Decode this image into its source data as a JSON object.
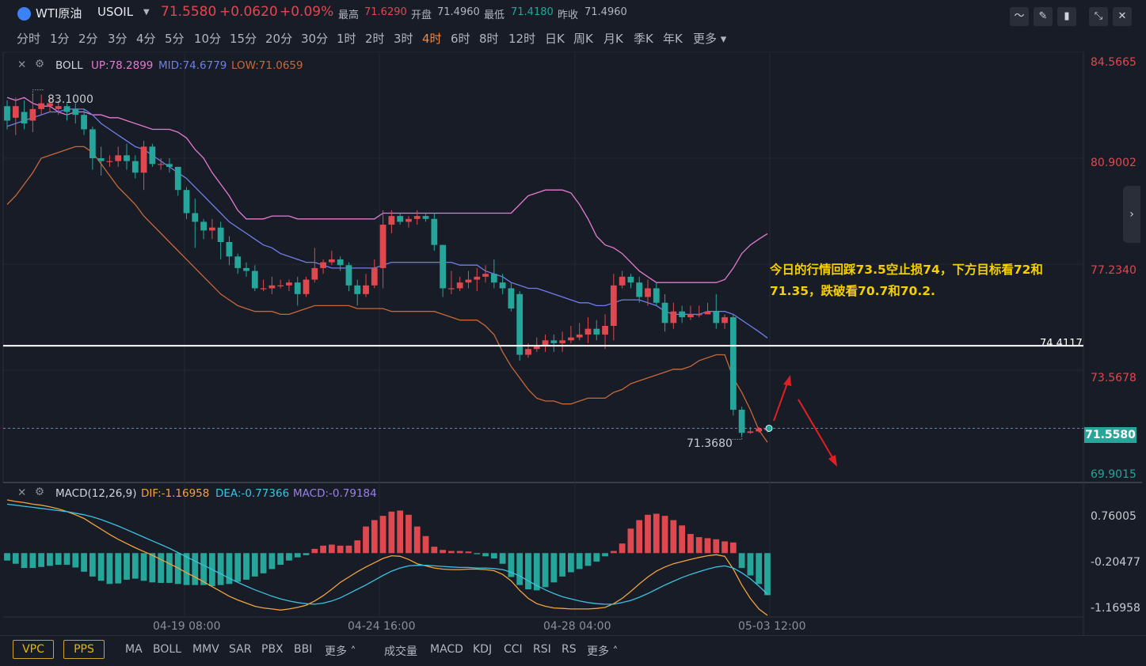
{
  "header": {
    "symbol": "WTI原油",
    "code": "USOIL",
    "price": "71.5580",
    "change": "+0.0620",
    "change_pct": "+0.09%",
    "high_label": "最高",
    "high": "71.6290",
    "open_label": "开盘",
    "open": "71.4960",
    "low_label": "最低",
    "low": "71.4180",
    "prev_label": "昨收",
    "prev": "71.4960"
  },
  "timeframes": [
    "分时",
    "1分",
    "2分",
    "3分",
    "4分",
    "5分",
    "10分",
    "15分",
    "20分",
    "30分",
    "1时",
    "2时",
    "3时",
    "4时",
    "6时",
    "8时",
    "12时",
    "日K",
    "周K",
    "月K",
    "季K",
    "年K",
    "更多"
  ],
  "active_timeframe": "4时",
  "boll": {
    "name": "BOLL",
    "up": "UP:78.2899",
    "mid": "MID:74.6779",
    "low": "LOW:71.0659"
  },
  "macd": {
    "name": "MACD(12,26,9)",
    "dif": "DIF:-1.16958",
    "dea": "DEA:-0.77366",
    "macd": "MACD:-0.79184"
  },
  "price_axis": [
    "84.5665",
    "80.9002",
    "77.2340",
    "73.5678",
    "69.9015"
  ],
  "macd_axis": [
    "0.76005",
    "-0.20477",
    "-1.16958"
  ],
  "dates": [
    "04-19 08:00",
    "04-24 16:00",
    "04-28 04:00",
    "05-03 12:00"
  ],
  "markers": {
    "high": "83.1000",
    "low": "71.3680",
    "hline": "74.4117",
    "current": "71.5580"
  },
  "annotation": {
    "line1": "今日的行情回踩73.5空止损74，下方目标看72和",
    "line2": "71.35，跌破看70.7和70.2."
  },
  "bottom": {
    "pills": [
      "VPC",
      "PPS"
    ],
    "main_indicators": [
      "MA",
      "BOLL",
      "MMV",
      "SAR",
      "PBX",
      "BBI",
      "更多"
    ],
    "sub_indicators": [
      "成交量",
      "MACD",
      "KDJ",
      "CCI",
      "RSI",
      "RS",
      "更多"
    ]
  },
  "colors": {
    "up": "#e0484f",
    "down": "#26a69a",
    "boll_up": "#e37bd0",
    "boll_mid": "#6e7fe8",
    "boll_low": "#c8683a",
    "dif": "#f3a33d",
    "dea": "#3cc1e0",
    "accent": "#f0883e"
  },
  "chart_data": {
    "type": "candlestick",
    "y_range": [
      69.9015,
      84.5665
    ],
    "candles": [
      [
        82.7,
        82.2,
        82.9,
        81.9
      ],
      [
        82.3,
        82.7,
        83.0,
        81.7
      ],
      [
        82.5,
        82.1,
        82.9,
        81.9
      ],
      [
        82.2,
        82.6,
        83.1,
        81.8
      ],
      [
        82.6,
        82.8,
        83.1,
        82.4
      ],
      [
        82.7,
        82.8,
        83.0,
        82.5
      ],
      [
        82.6,
        82.7,
        82.9,
        82.4
      ],
      [
        82.7,
        82.5,
        82.8,
        82.2
      ],
      [
        82.6,
        82.4,
        82.8,
        82.1
      ],
      [
        82.4,
        81.9,
        82.6,
        81.7
      ],
      [
        81.9,
        80.9,
        82.0,
        80.5
      ],
      [
        80.9,
        80.8,
        81.3,
        80.3
      ],
      [
        80.8,
        80.8,
        81.0,
        80.6
      ],
      [
        80.8,
        81.0,
        81.3,
        80.6
      ],
      [
        81.0,
        80.8,
        81.4,
        80.5
      ],
      [
        80.8,
        80.4,
        81.0,
        80.2
      ],
      [
        80.4,
        81.3,
        81.5,
        79.8
      ],
      [
        81.3,
        80.7,
        81.4,
        80.6
      ],
      [
        80.7,
        80.7,
        80.9,
        80.5
      ],
      [
        80.7,
        80.6,
        80.9,
        80.4
      ],
      [
        80.6,
        79.8,
        80.6,
        79.6
      ],
      [
        79.8,
        79.0,
        79.9,
        78.8
      ],
      [
        79.0,
        78.7,
        79.5,
        77.8
      ],
      [
        78.7,
        78.4,
        78.8,
        78.1
      ],
      [
        78.4,
        78.5,
        78.8,
        78.1
      ],
      [
        78.5,
        78.0,
        78.7,
        77.4
      ],
      [
        78.0,
        77.5,
        78.2,
        77.2
      ],
      [
        77.5,
        77.1,
        77.6,
        76.9
      ],
      [
        77.1,
        77.0,
        77.3,
        76.8
      ],
      [
        77.0,
        76.4,
        77.2,
        76.3
      ],
      [
        76.4,
        76.4,
        76.7,
        76.3
      ],
      [
        76.4,
        76.5,
        76.8,
        76.2
      ],
      [
        76.5,
        76.5,
        76.7,
        76.4
      ],
      [
        76.5,
        76.6,
        76.7,
        76.3
      ],
      [
        76.6,
        76.2,
        76.8,
        75.8
      ],
      [
        76.2,
        76.7,
        76.8,
        76.1
      ],
      [
        76.7,
        77.1,
        77.8,
        76.6
      ],
      [
        77.1,
        77.3,
        77.4,
        76.9
      ],
      [
        77.3,
        77.4,
        77.7,
        77.2
      ],
      [
        77.4,
        77.2,
        77.5,
        77.0
      ],
      [
        77.2,
        76.5,
        77.3,
        76.3
      ],
      [
        76.5,
        76.2,
        76.7,
        75.8
      ],
      [
        76.2,
        76.5,
        76.9,
        76.1
      ],
      [
        76.5,
        77.1,
        77.4,
        76.4
      ],
      [
        77.1,
        78.6,
        79.1,
        76.4
      ],
      [
        78.6,
        78.9,
        79.1,
        78.3
      ],
      [
        78.9,
        78.7,
        79.0,
        78.6
      ],
      [
        78.7,
        78.8,
        78.9,
        78.5
      ],
      [
        78.8,
        78.9,
        79.1,
        78.6
      ],
      [
        78.9,
        78.8,
        79.0,
        78.7
      ],
      [
        78.8,
        77.9,
        79.0,
        77.7
      ],
      [
        77.9,
        76.4,
        77.9,
        76.1
      ],
      [
        76.4,
        76.4,
        77.0,
        76.2
      ],
      [
        76.4,
        76.6,
        76.8,
        76.3
      ],
      [
        76.6,
        76.7,
        77.0,
        76.4
      ],
      [
        76.7,
        76.8,
        77.1,
        76.3
      ],
      [
        76.8,
        76.9,
        77.2,
        76.6
      ],
      [
        76.9,
        76.6,
        77.4,
        76.4
      ],
      [
        76.6,
        76.4,
        76.9,
        76.2
      ],
      [
        76.4,
        75.7,
        76.6,
        75.6
      ],
      [
        76.2,
        74.1,
        76.3,
        73.9
      ],
      [
        74.1,
        74.3,
        74.5,
        74.0
      ],
      [
        74.3,
        74.4,
        74.7,
        74.2
      ],
      [
        74.4,
        74.6,
        74.8,
        74.2
      ],
      [
        74.6,
        74.5,
        74.8,
        74.2
      ],
      [
        74.5,
        74.6,
        74.9,
        74.2
      ],
      [
        74.6,
        74.7,
        75.1,
        74.5
      ],
      [
        74.7,
        74.8,
        75.2,
        74.6
      ],
      [
        74.8,
        75.0,
        75.4,
        74.5
      ],
      [
        75.0,
        74.8,
        75.3,
        74.6
      ],
      [
        74.8,
        75.1,
        75.5,
        74.3
      ],
      [
        75.1,
        76.5,
        76.9,
        74.6
      ],
      [
        76.5,
        76.8,
        77.0,
        76.4
      ],
      [
        76.8,
        76.6,
        76.9,
        76.4
      ],
      [
        76.6,
        76.1,
        76.8,
        75.9
      ],
      [
        76.1,
        76.4,
        76.7,
        75.8
      ],
      [
        76.4,
        75.9,
        76.6,
        75.8
      ],
      [
        75.9,
        75.2,
        76.2,
        74.9
      ],
      [
        75.2,
        75.6,
        75.9,
        75.0
      ],
      [
        75.6,
        75.4,
        75.8,
        75.2
      ],
      [
        75.4,
        75.5,
        75.8,
        75.3
      ],
      [
        75.5,
        75.5,
        75.8,
        75.4
      ],
      [
        75.5,
        75.6,
        75.9,
        75.5
      ],
      [
        75.6,
        75.2,
        76.2,
        75.0
      ],
      [
        75.2,
        75.4,
        75.5,
        75.0
      ],
      [
        75.4,
        72.2,
        75.5,
        72.0
      ],
      [
        72.2,
        71.4,
        72.3,
        71.3
      ],
      [
        71.4,
        71.45,
        71.6,
        71.368
      ],
      [
        71.45,
        71.55,
        71.6,
        71.4
      ],
      [
        71.496,
        71.558,
        71.629,
        71.418
      ]
    ],
    "boll_up": [
      83.0,
      82.9,
      83.0,
      82.8,
      82.7,
      82.7,
      82.5,
      82.4,
      82.5,
      82.5,
      82.4,
      82.4,
      82.3,
      82.3,
      82.2,
      82.1,
      82.0,
      81.9,
      81.9,
      81.9,
      81.8,
      81.6,
      81.2,
      80.9,
      80.4,
      80.0,
      79.6,
      79.1,
      78.8,
      78.8,
      78.8,
      78.9,
      78.9,
      78.9,
      78.8,
      78.8,
      78.8,
      78.8,
      78.8,
      78.8,
      78.8,
      78.8,
      78.8,
      78.8,
      79.0,
      79.0,
      79.0,
      79.0,
      79.0,
      79.0,
      79.0,
      79.0,
      79.0,
      79.0,
      79.0,
      79.0,
      79.0,
      79.0,
      79.0,
      79.0,
      79.3,
      79.6,
      79.7,
      79.8,
      79.8,
      79.8,
      79.7,
      79.3,
      78.8,
      78.2,
      77.9,
      77.8,
      77.6,
      77.3,
      77.0,
      76.8,
      76.6,
      76.6,
      76.6,
      76.6,
      76.6,
      76.6,
      76.6,
      76.6,
      76.7,
      77.1,
      77.6,
      77.9,
      78.1,
      78.29
    ],
    "boll_mid": [
      82.0,
      82.1,
      82.2,
      82.3,
      82.4,
      82.5,
      82.5,
      82.6,
      82.6,
      82.6,
      82.4,
      82.1,
      81.9,
      81.7,
      81.5,
      81.3,
      81.2,
      81.0,
      80.8,
      80.6,
      80.4,
      80.2,
      79.9,
      79.6,
      79.3,
      79.0,
      78.7,
      78.5,
      78.3,
      78.1,
      77.9,
      77.8,
      77.6,
      77.5,
      77.4,
      77.3,
      77.3,
      77.2,
      77.1,
      77.1,
      77.1,
      77.1,
      77.1,
      77.1,
      77.2,
      77.3,
      77.3,
      77.3,
      77.3,
      77.3,
      77.3,
      77.3,
      77.3,
      77.2,
      77.2,
      77.2,
      77.0,
      76.9,
      76.8,
      76.6,
      76.5,
      76.4,
      76.4,
      76.3,
      76.2,
      76.1,
      76.0,
      75.9,
      75.9,
      75.8,
      75.8,
      75.9,
      76.0,
      76.0,
      76.0,
      75.9,
      75.8,
      75.6,
      75.5,
      75.5,
      75.5,
      75.5,
      75.6,
      75.6,
      75.6,
      75.5,
      75.3,
      75.1,
      74.9,
      74.68
    ],
    "boll_low": [
      79.3,
      79.6,
      80.0,
      80.4,
      80.9,
      81.0,
      81.1,
      81.2,
      81.3,
      81.3,
      81.1,
      80.7,
      80.3,
      79.9,
      79.6,
      79.3,
      78.9,
      78.6,
      78.3,
      78.0,
      77.7,
      77.4,
      77.1,
      76.8,
      76.5,
      76.2,
      76.0,
      75.8,
      75.7,
      75.6,
      75.6,
      75.6,
      75.5,
      75.5,
      75.6,
      75.7,
      75.8,
      75.8,
      75.8,
      75.8,
      75.8,
      75.7,
      75.7,
      75.7,
      75.7,
      75.6,
      75.6,
      75.6,
      75.6,
      75.6,
      75.6,
      75.5,
      75.4,
      75.3,
      75.3,
      75.3,
      75.1,
      74.8,
      74.2,
      73.7,
      73.3,
      72.9,
      72.6,
      72.5,
      72.5,
      72.4,
      72.4,
      72.5,
      72.6,
      72.6,
      72.6,
      72.8,
      72.9,
      73.1,
      73.2,
      73.3,
      73.4,
      73.5,
      73.6,
      73.6,
      73.7,
      73.9,
      74.0,
      74.1,
      74.1,
      73.3,
      72.8,
      72.2,
      71.5,
      71.07
    ],
    "macd_range": [
      -1.2,
      1.0
    ],
    "dif": [
      1.0,
      0.97,
      0.95,
      0.92,
      0.9,
      0.87,
      0.83,
      0.78,
      0.72,
      0.65,
      0.55,
      0.45,
      0.35,
      0.26,
      0.18,
      0.1,
      0.03,
      -0.04,
      -0.12,
      -0.2,
      -0.28,
      -0.37,
      -0.45,
      -0.54,
      -0.63,
      -0.72,
      -0.81,
      -0.88,
      -0.94,
      -1.0,
      -1.03,
      -1.05,
      -1.07,
      -1.05,
      -1.02,
      -0.98,
      -0.9,
      -0.8,
      -0.68,
      -0.55,
      -0.45,
      -0.35,
      -0.26,
      -0.18,
      -0.1,
      -0.05,
      -0.06,
      -0.12,
      -0.2,
      -0.24,
      -0.28,
      -0.3,
      -0.31,
      -0.31,
      -0.3,
      -0.3,
      -0.31,
      -0.33,
      -0.4,
      -0.52,
      -0.7,
      -0.85,
      -0.95,
      -1.0,
      -1.03,
      -1.04,
      -1.05,
      -1.05,
      -1.05,
      -1.04,
      -1.02,
      -0.95,
      -0.85,
      -0.72,
      -0.58,
      -0.45,
      -0.34,
      -0.26,
      -0.2,
      -0.16,
      -0.12,
      -0.08,
      -0.05,
      -0.03,
      -0.06,
      -0.3,
      -0.6,
      -0.85,
      -1.05,
      -1.17
    ],
    "dea": [
      0.92,
      0.9,
      0.88,
      0.86,
      0.84,
      0.82,
      0.8,
      0.78,
      0.75,
      0.72,
      0.68,
      0.63,
      0.57,
      0.51,
      0.44,
      0.37,
      0.3,
      0.23,
      0.16,
      0.09,
      0.01,
      -0.07,
      -0.15,
      -0.23,
      -0.31,
      -0.39,
      -0.47,
      -0.55,
      -0.62,
      -0.69,
      -0.75,
      -0.81,
      -0.86,
      -0.9,
      -0.93,
      -0.95,
      -0.96,
      -0.94,
      -0.9,
      -0.84,
      -0.76,
      -0.68,
      -0.6,
      -0.51,
      -0.42,
      -0.34,
      -0.28,
      -0.24,
      -0.23,
      -0.23,
      -0.24,
      -0.25,
      -0.26,
      -0.27,
      -0.27,
      -0.28,
      -0.28,
      -0.29,
      -0.31,
      -0.36,
      -0.43,
      -0.52,
      -0.61,
      -0.69,
      -0.76,
      -0.82,
      -0.86,
      -0.9,
      -0.93,
      -0.95,
      -0.96,
      -0.96,
      -0.93,
      -0.89,
      -0.83,
      -0.76,
      -0.68,
      -0.6,
      -0.53,
      -0.46,
      -0.4,
      -0.35,
      -0.3,
      -0.26,
      -0.24,
      -0.28,
      -0.37,
      -0.48,
      -0.62,
      -0.77
    ],
    "hist": [
      -0.14,
      -0.2,
      -0.28,
      -0.28,
      -0.26,
      -0.24,
      -0.22,
      -0.22,
      -0.27,
      -0.35,
      -0.44,
      -0.52,
      -0.58,
      -0.57,
      -0.5,
      -0.48,
      -0.52,
      -0.55,
      -0.56,
      -0.56,
      -0.58,
      -0.6,
      -0.6,
      -0.6,
      -0.62,
      -0.6,
      -0.58,
      -0.54,
      -0.5,
      -0.44,
      -0.38,
      -0.3,
      -0.22,
      -0.14,
      -0.08,
      -0.04,
      0.08,
      0.14,
      0.16,
      0.14,
      0.14,
      0.24,
      0.5,
      0.62,
      0.7,
      0.78,
      0.8,
      0.72,
      0.5,
      0.32,
      0.12,
      0.06,
      0.04,
      0.04,
      0.03,
      -0.02,
      -0.06,
      -0.1,
      -0.2,
      -0.45,
      -0.6,
      -0.68,
      -0.7,
      -0.64,
      -0.55,
      -0.44,
      -0.36,
      -0.3,
      -0.24,
      -0.16,
      -0.06,
      0.04,
      0.18,
      0.46,
      0.62,
      0.72,
      0.74,
      0.7,
      0.62,
      0.52,
      0.36,
      0.3,
      0.28,
      0.26,
      0.22,
      0.2,
      -0.28,
      -0.42,
      -0.58,
      -0.79
    ]
  }
}
